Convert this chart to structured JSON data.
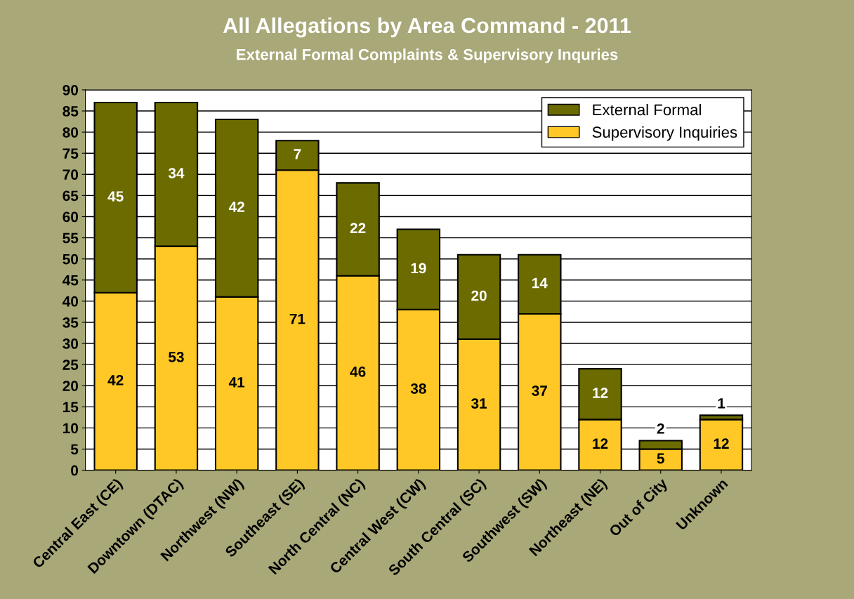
{
  "chart_data": {
    "type": "bar",
    "title": "All Allegations by Area Command - 2011",
    "subtitle": "External Formal Complaints & Supervisory Inquries",
    "categories": [
      "Central East (CE)",
      "Downtown (DTAC)",
      "Northwest (NW)",
      "Southeast (SE)",
      "North Central (NC)",
      "Central West (CW)",
      "South Central (SC)",
      "Southwest (SW)",
      "Northeast (NE)",
      "Out of City",
      "Unknown"
    ],
    "stacked": true,
    "series": [
      {
        "name": "Supervisory Inquiries",
        "color": "#ffc826",
        "values": [
          42,
          53,
          41,
          71,
          46,
          38,
          31,
          37,
          12,
          5,
          12
        ]
      },
      {
        "name": "External Formal",
        "color": "#6b6b00",
        "values": [
          45,
          34,
          42,
          7,
          22,
          19,
          20,
          14,
          12,
          2,
          1
        ]
      }
    ],
    "ylim": [
      0,
      90
    ],
    "yticks": [
      0,
      5,
      10,
      15,
      20,
      25,
      30,
      35,
      40,
      45,
      50,
      55,
      60,
      65,
      70,
      75,
      80,
      85,
      90
    ],
    "grid": "y",
    "legend": "top right",
    "data_labels": true
  }
}
